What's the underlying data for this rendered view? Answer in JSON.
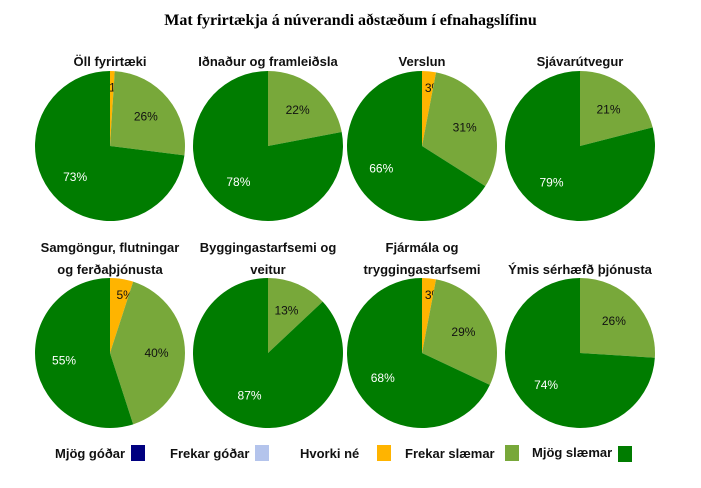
{
  "chart_data": {
    "type": "pie",
    "title": "Mat fyrirtækja á núverandi aðstæðum í efnahagslífinu",
    "legend": [
      {
        "label": "Mjög góðar",
        "color": "#000080"
      },
      {
        "label": "Frekar góðar",
        "color": "#b4c4ec"
      },
      {
        "label": "Hvorki né",
        "color": "#ffb400"
      },
      {
        "label": "Frekar slæmar",
        "color": "#78a83a"
      },
      {
        "label": "Mjög slæmar",
        "color": "#007c00"
      }
    ],
    "legend_position": "bottom",
    "series_order": [
      "Hvorki né",
      "Frekar slæmar",
      "Mjög slæmar"
    ],
    "pies": [
      {
        "title": [
          "Öll fyrirtæki"
        ],
        "values": [
          1,
          26,
          73
        ]
      },
      {
        "title": [
          "Iðnaður og framleiðsla"
        ],
        "values": [
          0,
          22,
          78
        ]
      },
      {
        "title": [
          "Verslun"
        ],
        "values": [
          3,
          31,
          66
        ]
      },
      {
        "title": [
          "Sjávarútvegur"
        ],
        "values": [
          0,
          21,
          79
        ]
      },
      {
        "title": [
          "Samgöngur, flutningar",
          "og ferðaþjónusta"
        ],
        "values": [
          5,
          40,
          55
        ]
      },
      {
        "title": [
          "Byggingastarfsemi og",
          "veitur"
        ],
        "values": [
          0,
          13,
          87
        ]
      },
      {
        "title": [
          "Fjármála og",
          "tryggingastarfsemi"
        ],
        "values": [
          3,
          29,
          68
        ]
      },
      {
        "title": [
          "Ýmis sérhæfð þjónusta"
        ],
        "values": [
          0,
          26,
          74
        ]
      }
    ]
  }
}
